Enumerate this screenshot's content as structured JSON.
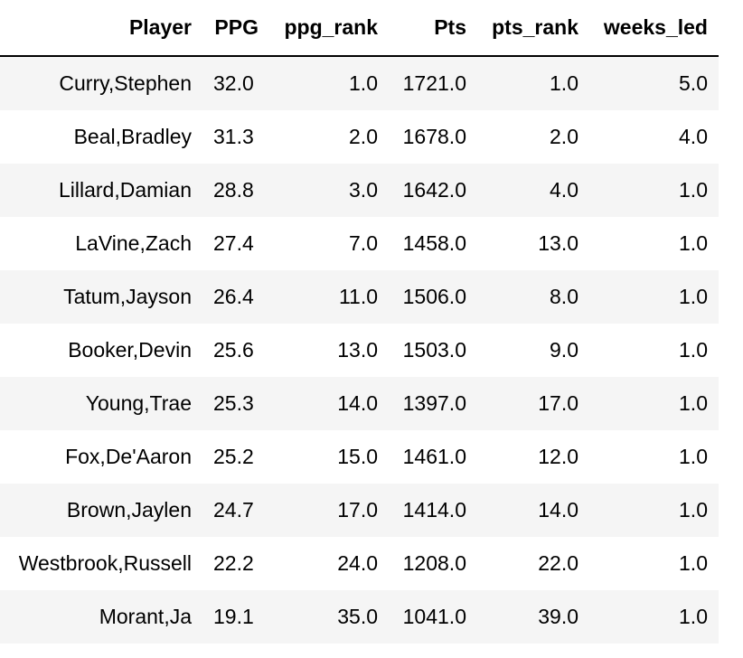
{
  "table": {
    "columns": [
      "Player",
      "PPG",
      "ppg_rank",
      "Pts",
      "pts_rank",
      "weeks_led"
    ],
    "rows": [
      [
        "Curry,Stephen",
        "32.0",
        "1.0",
        "1721.0",
        "1.0",
        "5.0"
      ],
      [
        "Beal,Bradley",
        "31.3",
        "2.0",
        "1678.0",
        "2.0",
        "4.0"
      ],
      [
        "Lillard,Damian",
        "28.8",
        "3.0",
        "1642.0",
        "4.0",
        "1.0"
      ],
      [
        "LaVine,Zach",
        "27.4",
        "7.0",
        "1458.0",
        "13.0",
        "1.0"
      ],
      [
        "Tatum,Jayson",
        "26.4",
        "11.0",
        "1506.0",
        "8.0",
        "1.0"
      ],
      [
        "Booker,Devin",
        "25.6",
        "13.0",
        "1503.0",
        "9.0",
        "1.0"
      ],
      [
        "Young,Trae",
        "25.3",
        "14.0",
        "1397.0",
        "17.0",
        "1.0"
      ],
      [
        "Fox,De'Aaron",
        "25.2",
        "15.0",
        "1461.0",
        "12.0",
        "1.0"
      ],
      [
        "Brown,Jaylen",
        "24.7",
        "17.0",
        "1414.0",
        "14.0",
        "1.0"
      ],
      [
        "Westbrook,Russell",
        "22.2",
        "24.0",
        "1208.0",
        "22.0",
        "1.0"
      ],
      [
        "Morant,Ja",
        "19.1",
        "35.0",
        "1041.0",
        "39.0",
        "1.0"
      ]
    ]
  },
  "colors": {
    "stripe": "#f5f5f5",
    "header_border": "#000000",
    "text": "#000000"
  }
}
